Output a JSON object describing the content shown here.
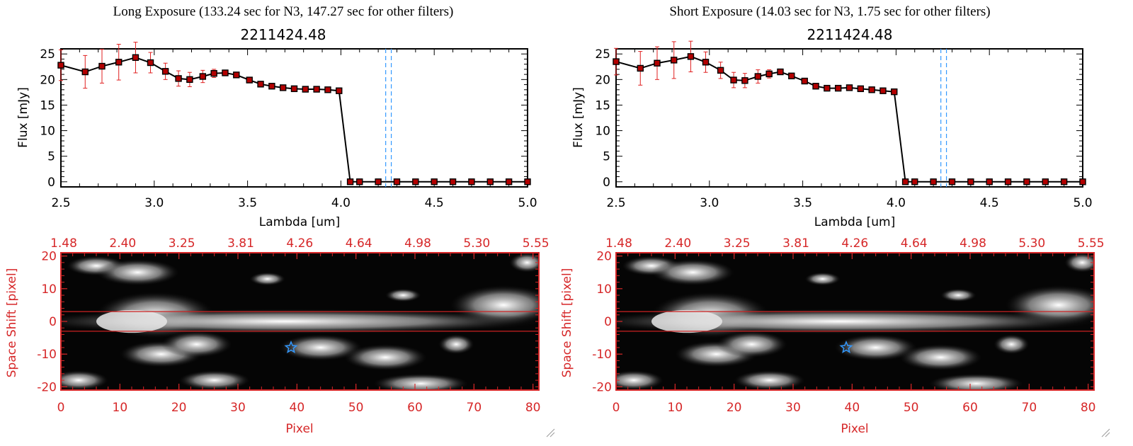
{
  "colors": {
    "axis_black": "#000000",
    "axis_red": "#d62728",
    "marker": "#b30000",
    "errorbar": "#e02020",
    "dashed_blue": "#3399ff",
    "line_red": "#cc2222",
    "star_blue": "#3399ff",
    "bg": "#ffffff"
  },
  "panels": [
    {
      "header": "Long Exposure (133.24 sec for N3, 147.27 sec for other filters)",
      "spectrum": {
        "title": "2211424.48",
        "xlabel": "Lambda [um]",
        "ylabel": "Flux [mJy]"
      },
      "image": {
        "xlabel": "Pixel",
        "ylabel": "Space Shift [pixel]"
      }
    },
    {
      "header": "Short Exposure (14.03 sec for N3, 1.75 sec for other filters)",
      "spectrum": {
        "title": "2211424.48",
        "xlabel": "Lambda [um]",
        "ylabel": "Flux [mJy]"
      },
      "image": {
        "xlabel": "Pixel",
        "ylabel": "Space Shift [pixel]"
      }
    }
  ],
  "chart_data": [
    {
      "type": "line",
      "panel": "long",
      "title": "2211424.48",
      "xlabel": "Lambda [um]",
      "ylabel": "Flux [mJy]",
      "xlim": [
        2.5,
        5.0
      ],
      "ylim": [
        -1,
        26
      ],
      "xticks": [
        2.5,
        3.0,
        3.5,
        4.0,
        4.5,
        5.0
      ],
      "xtick_labels": [
        "2.5",
        "3.0",
        "3.5",
        "4.0",
        "4.5",
        "5.0"
      ],
      "yticks": [
        0,
        5,
        10,
        15,
        20,
        25
      ],
      "ytick_labels": [
        "0",
        "5",
        "10",
        "15",
        "20",
        "25"
      ],
      "vlines": [
        4.24,
        4.27
      ],
      "x": [
        2.5,
        2.63,
        2.72,
        2.81,
        2.9,
        2.98,
        3.06,
        3.13,
        3.19,
        3.26,
        3.32,
        3.38,
        3.44,
        3.51,
        3.57,
        3.63,
        3.69,
        3.75,
        3.81,
        3.87,
        3.93,
        3.99,
        4.05,
        4.1,
        4.2,
        4.3,
        4.4,
        4.5,
        4.6,
        4.7,
        4.8,
        4.9,
        5.0
      ],
      "y": [
        22.8,
        21.5,
        22.6,
        23.4,
        24.3,
        23.3,
        21.6,
        20.2,
        20.0,
        20.6,
        21.2,
        21.3,
        20.9,
        19.9,
        19.1,
        18.7,
        18.4,
        18.2,
        18.1,
        18.1,
        18.0,
        17.8,
        0,
        0,
        0,
        0,
        0,
        0,
        0,
        0,
        0,
        0,
        0
      ],
      "yerr": [
        3.0,
        3.2,
        3.3,
        3.5,
        3.0,
        2.0,
        1.6,
        1.5,
        1.4,
        1.2,
        0.8,
        0.5,
        0.4,
        0.3,
        0.3,
        0.3,
        0.3,
        0.3,
        0.3,
        0.3,
        0.3,
        0.3,
        0,
        0,
        0,
        0,
        0,
        0,
        0,
        0,
        0,
        0,
        0
      ]
    },
    {
      "type": "heatmap",
      "panel": "long",
      "xlabel": "Pixel",
      "ylabel": "Space Shift [pixel]",
      "xlim": [
        0,
        81
      ],
      "ylim": [
        -21,
        21
      ],
      "xticks": [
        0,
        10,
        20,
        30,
        40,
        50,
        60,
        70,
        80
      ],
      "yticks": [
        -20,
        -10,
        0,
        10,
        20
      ],
      "top_tick_labels": [
        "1.48",
        "2.40",
        "3.25",
        "3.81",
        "4.26",
        "4.64",
        "4.98",
        "5.30",
        "5.55"
      ],
      "hlines": [
        3,
        -3
      ],
      "star": {
        "x": 39,
        "y": -8
      }
    },
    {
      "type": "line",
      "panel": "short",
      "title": "2211424.48",
      "xlabel": "Lambda [um]",
      "ylabel": "Flux [mJy]",
      "xlim": [
        2.5,
        5.0
      ],
      "ylim": [
        -1,
        26
      ],
      "xticks": [
        2.5,
        3.0,
        3.5,
        4.0,
        4.5,
        5.0
      ],
      "xtick_labels": [
        "2.5",
        "3.0",
        "3.5",
        "4.0",
        "4.5",
        "5.0"
      ],
      "yticks": [
        0,
        5,
        10,
        15,
        20,
        25
      ],
      "ytick_labels": [
        "0",
        "5",
        "10",
        "15",
        "20",
        "25"
      ],
      "vlines": [
        4.24,
        4.27
      ],
      "x": [
        2.5,
        2.63,
        2.72,
        2.81,
        2.9,
        2.98,
        3.06,
        3.13,
        3.19,
        3.26,
        3.32,
        3.38,
        3.44,
        3.51,
        3.57,
        3.63,
        3.69,
        3.75,
        3.81,
        3.87,
        3.93,
        3.99,
        4.05,
        4.1,
        4.2,
        4.3,
        4.4,
        4.5,
        4.6,
        4.7,
        4.8,
        4.9,
        5.0
      ],
      "y": [
        23.5,
        22.2,
        23.2,
        23.8,
        24.5,
        23.4,
        21.8,
        19.9,
        19.8,
        20.6,
        21.1,
        21.5,
        20.7,
        19.7,
        18.7,
        18.3,
        18.3,
        18.4,
        18.2,
        18.0,
        17.8,
        17.6,
        0,
        0,
        0,
        0,
        0,
        0,
        0,
        0,
        0,
        0,
        0
      ],
      "yerr": [
        2.6,
        3.3,
        3.2,
        3.6,
        3.0,
        2.0,
        1.6,
        1.5,
        1.4,
        1.3,
        0.8,
        0.5,
        0.4,
        0.3,
        0.3,
        0.3,
        0.3,
        0.3,
        0.3,
        0.3,
        0.3,
        0.3,
        0,
        0,
        0,
        0,
        0,
        0,
        0,
        0,
        0,
        0,
        0
      ]
    },
    {
      "type": "heatmap",
      "panel": "short",
      "xlabel": "Pixel",
      "ylabel": "Space Shift [pixel]",
      "xlim": [
        0,
        81
      ],
      "ylim": [
        -21,
        21
      ],
      "xticks": [
        0,
        10,
        20,
        30,
        40,
        50,
        60,
        70,
        80
      ],
      "yticks": [
        -20,
        -10,
        0,
        10,
        20
      ],
      "top_tick_labels": [
        "1.48",
        "2.40",
        "3.25",
        "3.81",
        "4.26",
        "4.64",
        "4.98",
        "5.30",
        "5.55"
      ],
      "hlines": [
        3,
        -3
      ],
      "star": {
        "x": 39,
        "y": -8
      }
    }
  ]
}
